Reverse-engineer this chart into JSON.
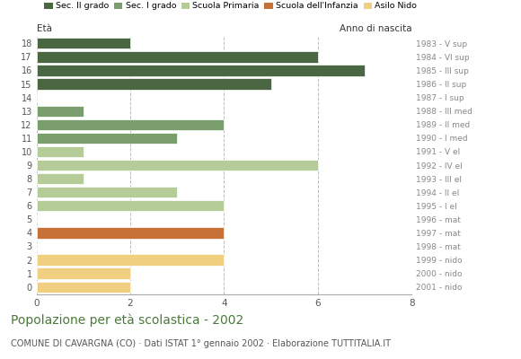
{
  "ages": [
    18,
    17,
    16,
    15,
    14,
    13,
    12,
    11,
    10,
    9,
    8,
    7,
    6,
    5,
    4,
    3,
    2,
    1,
    0
  ],
  "values": [
    2,
    6,
    7,
    5,
    0,
    1,
    4,
    3,
    1,
    6,
    1,
    3,
    4,
    0,
    4,
    0,
    4,
    2,
    2
  ],
  "categories": [
    "Sec. II grado",
    "Sec. II grado",
    "Sec. II grado",
    "Sec. II grado",
    "Sec. II grado",
    "Sec. I grado",
    "Sec. I grado",
    "Sec. I grado",
    "Scuola Primaria",
    "Scuola Primaria",
    "Scuola Primaria",
    "Scuola Primaria",
    "Scuola Primaria",
    "Scuola dell'Infanzia",
    "Scuola dell'Infanzia",
    "Scuola dell'Infanzia",
    "Asilo Nido",
    "Asilo Nido",
    "Asilo Nido"
  ],
  "anno_nascita": [
    "1983 - V sup",
    "1984 - VI sup",
    "1985 - III sup",
    "1986 - II sup",
    "1987 - I sup",
    "1988 - III med",
    "1989 - II med",
    "1990 - I med",
    "1991 - V el",
    "1992 - IV el",
    "1993 - III el",
    "1994 - II el",
    "1995 - I el",
    "1996 - mat",
    "1997 - mat",
    "1998 - mat",
    "1999 - nido",
    "2000 - nido",
    "2001 - nido"
  ],
  "colors": {
    "Sec. II grado": "#4a6741",
    "Sec. I grado": "#7a9e6e",
    "Scuola Primaria": "#b5cc99",
    "Scuola dell'Infanzia": "#c87137",
    "Asilo Nido": "#f0d080"
  },
  "legend_order": [
    "Sec. II grado",
    "Sec. I grado",
    "Scuola Primaria",
    "Scuola dell'Infanzia",
    "Asilo Nido"
  ],
  "title": "Popolazione per età scolastica - 2002",
  "subtitle": "COMUNE DI CAVARGNA (CO) · Dati ISTAT 1° gennaio 2002 · Elaborazione TUTTITALIA.IT",
  "xlabel_left": "Età",
  "xlabel_right": "Anno di nascita",
  "xlim": [
    0,
    8
  ],
  "xticks": [
    0,
    2,
    4,
    6,
    8
  ],
  "background_color": "#ffffff",
  "grid_color": "#bbbbbb",
  "bar_height": 0.82
}
